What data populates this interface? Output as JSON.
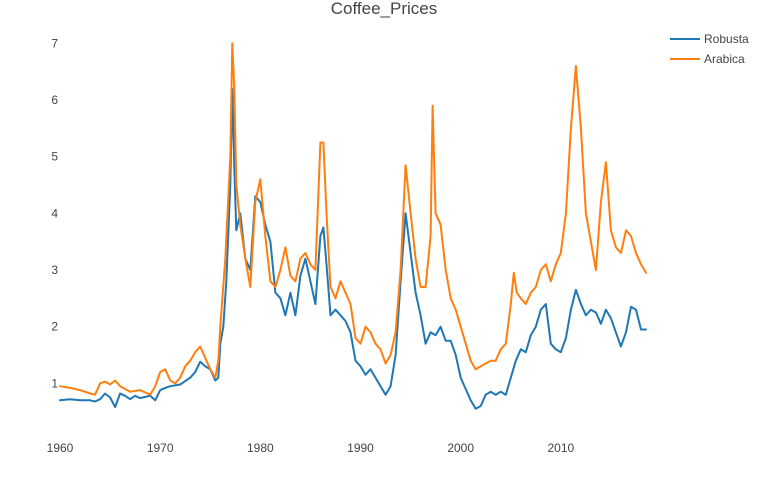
{
  "chart_data": {
    "type": "line",
    "title": "Coffee_Prices",
    "xlabel": "",
    "ylabel": "",
    "xlim": [
      1960,
      2019
    ],
    "ylim": [
      0.3,
      7.2
    ],
    "xticks": [
      1960,
      1970,
      1980,
      1990,
      2000,
      2010
    ],
    "yticks": [
      1,
      2,
      3,
      4,
      5,
      6,
      7
    ],
    "grid": false,
    "legend_position": "top-right",
    "series": [
      {
        "name": "Robusta",
        "color": "#1f77b4",
        "points": [
          [
            1960.0,
            0.7
          ],
          [
            1961.0,
            0.72
          ],
          [
            1962.0,
            0.7
          ],
          [
            1963.0,
            0.7
          ],
          [
            1963.5,
            0.68
          ],
          [
            1964.0,
            0.72
          ],
          [
            1964.5,
            0.82
          ],
          [
            1965.0,
            0.75
          ],
          [
            1965.5,
            0.58
          ],
          [
            1966.0,
            0.82
          ],
          [
            1966.5,
            0.78
          ],
          [
            1967.0,
            0.72
          ],
          [
            1967.5,
            0.78
          ],
          [
            1968.0,
            0.74
          ],
          [
            1968.5,
            0.76
          ],
          [
            1969.0,
            0.78
          ],
          [
            1969.5,
            0.7
          ],
          [
            1970.0,
            0.88
          ],
          [
            1970.5,
            0.92
          ],
          [
            1971.0,
            0.95
          ],
          [
            1972.0,
            0.98
          ],
          [
            1973.0,
            1.1
          ],
          [
            1973.5,
            1.2
          ],
          [
            1974.0,
            1.38
          ],
          [
            1974.5,
            1.3
          ],
          [
            1975.0,
            1.25
          ],
          [
            1975.5,
            1.05
          ],
          [
            1975.8,
            1.1
          ],
          [
            1976.0,
            1.7
          ],
          [
            1976.3,
            2.0
          ],
          [
            1976.6,
            2.8
          ],
          [
            1977.0,
            4.5
          ],
          [
            1977.2,
            6.2
          ],
          [
            1977.4,
            4.8
          ],
          [
            1977.6,
            3.7
          ],
          [
            1978.0,
            4.0
          ],
          [
            1978.5,
            3.2
          ],
          [
            1979.0,
            3.0
          ],
          [
            1979.5,
            4.3
          ],
          [
            1980.0,
            4.2
          ],
          [
            1980.5,
            3.8
          ],
          [
            1981.0,
            3.5
          ],
          [
            1981.5,
            2.6
          ],
          [
            1982.0,
            2.5
          ],
          [
            1982.5,
            2.2
          ],
          [
            1983.0,
            2.6
          ],
          [
            1983.5,
            2.2
          ],
          [
            1984.0,
            2.9
          ],
          [
            1984.5,
            3.2
          ],
          [
            1985.0,
            2.8
          ],
          [
            1985.5,
            2.4
          ],
          [
            1986.0,
            3.6
          ],
          [
            1986.3,
            3.75
          ],
          [
            1986.6,
            3.1
          ],
          [
            1987.0,
            2.2
          ],
          [
            1987.5,
            2.3
          ],
          [
            1988.0,
            2.2
          ],
          [
            1988.5,
            2.1
          ],
          [
            1989.0,
            1.9
          ],
          [
            1989.5,
            1.4
          ],
          [
            1990.0,
            1.3
          ],
          [
            1990.5,
            1.15
          ],
          [
            1991.0,
            1.25
          ],
          [
            1991.5,
            1.1
          ],
          [
            1992.0,
            0.95
          ],
          [
            1992.5,
            0.8
          ],
          [
            1993.0,
            0.95
          ],
          [
            1993.5,
            1.5
          ],
          [
            1994.0,
            2.8
          ],
          [
            1994.5,
            4.0
          ],
          [
            1995.0,
            3.3
          ],
          [
            1995.5,
            2.6
          ],
          [
            1996.0,
            2.2
          ],
          [
            1996.5,
            1.7
          ],
          [
            1997.0,
            1.9
          ],
          [
            1997.5,
            1.85
          ],
          [
            1998.0,
            2.0
          ],
          [
            1998.5,
            1.75
          ],
          [
            1999.0,
            1.75
          ],
          [
            1999.5,
            1.5
          ],
          [
            2000.0,
            1.1
          ],
          [
            2000.5,
            0.9
          ],
          [
            2001.0,
            0.7
          ],
          [
            2001.5,
            0.55
          ],
          [
            2002.0,
            0.6
          ],
          [
            2002.5,
            0.8
          ],
          [
            2003.0,
            0.85
          ],
          [
            2003.5,
            0.8
          ],
          [
            2004.0,
            0.85
          ],
          [
            2004.5,
            0.8
          ],
          [
            2005.0,
            1.1
          ],
          [
            2005.5,
            1.4
          ],
          [
            2006.0,
            1.6
          ],
          [
            2006.5,
            1.55
          ],
          [
            2007.0,
            1.85
          ],
          [
            2007.5,
            2.0
          ],
          [
            2008.0,
            2.3
          ],
          [
            2008.5,
            2.4
          ],
          [
            2009.0,
            1.7
          ],
          [
            2009.5,
            1.6
          ],
          [
            2010.0,
            1.55
          ],
          [
            2010.5,
            1.8
          ],
          [
            2011.0,
            2.3
          ],
          [
            2011.5,
            2.65
          ],
          [
            2012.0,
            2.4
          ],
          [
            2012.5,
            2.2
          ],
          [
            2013.0,
            2.3
          ],
          [
            2013.5,
            2.25
          ],
          [
            2014.0,
            2.05
          ],
          [
            2014.5,
            2.3
          ],
          [
            2015.0,
            2.15
          ],
          [
            2015.5,
            1.9
          ],
          [
            2016.0,
            1.65
          ],
          [
            2016.5,
            1.9
          ],
          [
            2017.0,
            2.35
          ],
          [
            2017.5,
            2.3
          ],
          [
            2018.0,
            1.95
          ],
          [
            2018.5,
            1.95
          ]
        ]
      },
      {
        "name": "Arabica",
        "color": "#ff7f0e",
        "points": [
          [
            1960.0,
            0.95
          ],
          [
            1961.0,
            0.92
          ],
          [
            1962.0,
            0.88
          ],
          [
            1963.0,
            0.82
          ],
          [
            1963.5,
            0.8
          ],
          [
            1964.0,
            1.0
          ],
          [
            1964.5,
            1.03
          ],
          [
            1965.0,
            0.98
          ],
          [
            1965.5,
            1.05
          ],
          [
            1966.0,
            0.95
          ],
          [
            1966.5,
            0.9
          ],
          [
            1967.0,
            0.85
          ],
          [
            1968.0,
            0.88
          ],
          [
            1969.0,
            0.8
          ],
          [
            1969.5,
            0.95
          ],
          [
            1970.0,
            1.2
          ],
          [
            1970.5,
            1.25
          ],
          [
            1971.0,
            1.05
          ],
          [
            1971.5,
            1.0
          ],
          [
            1972.0,
            1.1
          ],
          [
            1972.5,
            1.3
          ],
          [
            1973.0,
            1.4
          ],
          [
            1973.5,
            1.55
          ],
          [
            1974.0,
            1.65
          ],
          [
            1974.5,
            1.45
          ],
          [
            1975.0,
            1.25
          ],
          [
            1975.5,
            1.1
          ],
          [
            1975.8,
            1.4
          ],
          [
            1976.0,
            2.0
          ],
          [
            1976.5,
            3.2
          ],
          [
            1977.0,
            5.0
          ],
          [
            1977.2,
            7.0
          ],
          [
            1977.4,
            6.2
          ],
          [
            1977.6,
            4.5
          ],
          [
            1978.0,
            3.8
          ],
          [
            1978.5,
            3.2
          ],
          [
            1979.0,
            2.7
          ],
          [
            1979.5,
            4.2
          ],
          [
            1980.0,
            4.6
          ],
          [
            1980.5,
            3.6
          ],
          [
            1981.0,
            2.8
          ],
          [
            1981.5,
            2.7
          ],
          [
            1982.0,
            3.0
          ],
          [
            1982.5,
            3.4
          ],
          [
            1983.0,
            2.9
          ],
          [
            1983.5,
            2.8
          ],
          [
            1984.0,
            3.2
          ],
          [
            1984.5,
            3.3
          ],
          [
            1985.0,
            3.1
          ],
          [
            1985.5,
            3.0
          ],
          [
            1986.0,
            5.25
          ],
          [
            1986.3,
            5.25
          ],
          [
            1986.6,
            4.0
          ],
          [
            1987.0,
            2.7
          ],
          [
            1987.5,
            2.5
          ],
          [
            1988.0,
            2.8
          ],
          [
            1988.5,
            2.6
          ],
          [
            1989.0,
            2.4
          ],
          [
            1989.5,
            1.8
          ],
          [
            1990.0,
            1.7
          ],
          [
            1990.5,
            2.0
          ],
          [
            1991.0,
            1.9
          ],
          [
            1991.5,
            1.7
          ],
          [
            1992.0,
            1.6
          ],
          [
            1992.5,
            1.35
          ],
          [
            1993.0,
            1.5
          ],
          [
            1993.5,
            1.9
          ],
          [
            1994.0,
            3.0
          ],
          [
            1994.5,
            4.85
          ],
          [
            1995.0,
            4.0
          ],
          [
            1995.5,
            3.2
          ],
          [
            1996.0,
            2.7
          ],
          [
            1996.5,
            2.7
          ],
          [
            1997.0,
            3.6
          ],
          [
            1997.2,
            5.9
          ],
          [
            1997.5,
            4.0
          ],
          [
            1998.0,
            3.8
          ],
          [
            1998.5,
            3.0
          ],
          [
            1999.0,
            2.5
          ],
          [
            1999.5,
            2.3
          ],
          [
            2000.0,
            2.0
          ],
          [
            2000.5,
            1.7
          ],
          [
            2001.0,
            1.4
          ],
          [
            2001.5,
            1.25
          ],
          [
            2002.0,
            1.3
          ],
          [
            2002.5,
            1.35
          ],
          [
            2003.0,
            1.4
          ],
          [
            2003.5,
            1.4
          ],
          [
            2004.0,
            1.6
          ],
          [
            2004.5,
            1.7
          ],
          [
            2005.0,
            2.4
          ],
          [
            2005.3,
            2.95
          ],
          [
            2005.6,
            2.6
          ],
          [
            2006.0,
            2.5
          ],
          [
            2006.5,
            2.4
          ],
          [
            2007.0,
            2.6
          ],
          [
            2007.5,
            2.7
          ],
          [
            2008.0,
            3.0
          ],
          [
            2008.5,
            3.1
          ],
          [
            2009.0,
            2.8
          ],
          [
            2009.5,
            3.1
          ],
          [
            2010.0,
            3.3
          ],
          [
            2010.5,
            4.0
          ],
          [
            2011.0,
            5.5
          ],
          [
            2011.5,
            6.6
          ],
          [
            2012.0,
            5.5
          ],
          [
            2012.5,
            4.0
          ],
          [
            2013.0,
            3.5
          ],
          [
            2013.5,
            3.0
          ],
          [
            2014.0,
            4.2
          ],
          [
            2014.5,
            4.9
          ],
          [
            2015.0,
            3.7
          ],
          [
            2015.5,
            3.4
          ],
          [
            2016.0,
            3.3
          ],
          [
            2016.5,
            3.7
          ],
          [
            2017.0,
            3.6
          ],
          [
            2017.5,
            3.3
          ],
          [
            2018.0,
            3.1
          ],
          [
            2018.5,
            2.95
          ]
        ]
      }
    ]
  }
}
